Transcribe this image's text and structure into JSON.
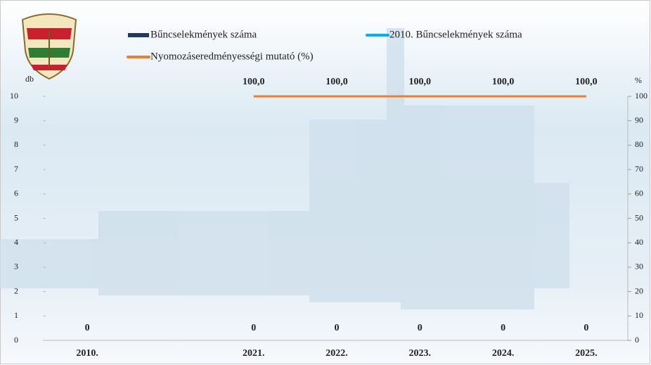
{
  "chart_data": {
    "type": "bar-line",
    "categories": [
      "2010.",
      null,
      "2021.",
      "2022.",
      "2023.",
      "2024.",
      "2025."
    ],
    "ylabel": "db",
    "y2label": "%",
    "ylim": [
      0,
      10
    ],
    "yticks": [
      0,
      1,
      2,
      3,
      4,
      5,
      6,
      7,
      8,
      9,
      10
    ],
    "y2lim": [
      0,
      100
    ],
    "y2ticks": [
      0,
      10,
      20,
      30,
      40,
      50,
      60,
      70,
      80,
      90,
      100
    ],
    "series": [
      {
        "name": "Bűncselekmények száma",
        "type": "bar",
        "color": "#1f3864",
        "values": [
          null,
          null,
          0,
          0,
          0,
          0,
          0
        ]
      },
      {
        "name": "2010. Bűncselekmények száma",
        "type": "line",
        "color": "#00b0f0",
        "values": [
          0,
          null,
          null,
          null,
          null,
          null,
          null
        ]
      },
      {
        "name": "Nyomozáseredményességi mutató (%)",
        "type": "line",
        "axis": "y2",
        "color": "#ed7d31",
        "values": [
          null,
          null,
          100,
          100,
          100,
          100,
          100
        ],
        "value_labels": [
          null,
          null,
          "100,0",
          "100,0",
          "100,0",
          "100,0",
          "100,0"
        ]
      }
    ]
  }
}
